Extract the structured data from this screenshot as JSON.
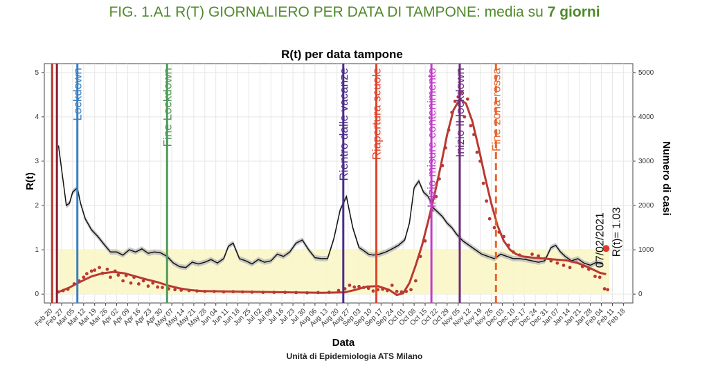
{
  "figure": {
    "title_main": "FIG. 1.A1 R(T) GIORNALIERO PER DATA DI TAMPONE: media su ",
    "title_bold": "7 giorni",
    "credit": "Unità di Epidemiologia ATS Milano"
  },
  "colors": {
    "rt_line": "#111111",
    "rt_band": "#bdbdbd",
    "cases": "#b83a32",
    "threshold_band": "#fbf6c6",
    "grid": "#e6e6e6"
  },
  "chart_data": {
    "type": "line",
    "title": "R(t) per data tampone",
    "xlabel": "Data",
    "ylabel": "R(t)",
    "y2label": "Numero di casi",
    "x_ticks": [
      "Feb 20",
      "Feb 27",
      "Mar 05",
      "Mar 12",
      "Mar 19",
      "Mar 26",
      "Apr 02",
      "Apr 09",
      "Apr 16",
      "Apr 23",
      "Apr 30",
      "May 07",
      "May 14",
      "May 21",
      "May 28",
      "Jun 04",
      "Jun 11",
      "Jun 18",
      "Jun 25",
      "Jul 02",
      "Jul 09",
      "Jul 16",
      "Jul 23",
      "Jul 30",
      "Aug 06",
      "Aug 13",
      "Aug 20",
      "Aug 27",
      "Sep 03",
      "Sep 10",
      "Sep 17",
      "Sep 24",
      "Oct 01",
      "Oct 08",
      "Oct 15",
      "Oct 22",
      "Oct 29",
      "Nov 05",
      "Nov 12",
      "Nov 19",
      "Nov 26",
      "Dec 03",
      "Dec 10",
      "Dec 17",
      "Dec 24",
      "Dec 31",
      "Jan 07",
      "Jan 14",
      "Jan 21",
      "Jan 28",
      "Feb 04",
      "Feb 11",
      "Feb 18"
    ],
    "xlim": [
      "2020-02-16",
      "2021-02-24"
    ],
    "ylim": [
      -0.2,
      5.2
    ],
    "y_ticks": [
      0,
      1,
      2,
      3,
      4,
      5
    ],
    "y2lim": [
      -200,
      5200
    ],
    "y2_ticks": [
      0,
      1000,
      2000,
      3000,
      4000,
      5000
    ],
    "threshold_band": [
      0,
      1
    ],
    "grid": true,
    "events": [
      {
        "date": "2020-02-21",
        "label": "",
        "color": "#c0392b",
        "dashed": false
      },
      {
        "date": "2020-02-24",
        "label": "",
        "color": "#8e1b2c",
        "dashed": false
      },
      {
        "date": "2020-03-08",
        "label": "Lockdown",
        "color": "#3a7fc0",
        "dashed": false
      },
      {
        "date": "2020-05-04",
        "label": "Fine Lockdown",
        "color": "#4f9a5a",
        "dashed": false
      },
      {
        "date": "2020-08-24",
        "label": "Rientro dalle vacanze",
        "color": "#4b2b8a",
        "dashed": false
      },
      {
        "date": "2020-09-14",
        "label": "Riapertura scuole",
        "color": "#e0432a",
        "dashed": false
      },
      {
        "date": "2020-10-19",
        "label": "Inizio misure contenimento",
        "color": "#c13cc9",
        "dashed": false
      },
      {
        "date": "2020-11-06",
        "label": "Inizio II lockdown",
        "color": "#6b2a7a",
        "dashed": false
      },
      {
        "date": "2020-11-29",
        "label": "Fine zona rossa",
        "color": "#e8642c",
        "dashed": true
      }
    ],
    "annotation": {
      "date": "2021-02-07",
      "value": 1.03,
      "date_label": "07/02/2021",
      "value_label": "R(t)= 1.03",
      "color": "#e03a2f"
    },
    "series": [
      {
        "kind": "rt",
        "x": [
          "2020-02-25",
          "2020-03-01",
          "2020-03-03",
          "2020-03-05",
          "2020-03-08",
          "2020-03-10",
          "2020-03-13",
          "2020-03-17",
          "2020-03-21",
          "2020-03-25",
          "2020-03-29",
          "2020-04-02",
          "2020-04-06",
          "2020-04-10",
          "2020-04-14",
          "2020-04-18",
          "2020-04-22",
          "2020-04-26",
          "2020-04-30",
          "2020-05-04",
          "2020-05-08",
          "2020-05-12",
          "2020-05-16",
          "2020-05-20",
          "2020-05-24",
          "2020-05-28",
          "2020-06-01",
          "2020-06-05",
          "2020-06-09",
          "2020-06-12",
          "2020-06-15",
          "2020-06-19",
          "2020-06-23",
          "2020-06-27",
          "2020-07-01",
          "2020-07-05",
          "2020-07-09",
          "2020-07-13",
          "2020-07-17",
          "2020-07-21",
          "2020-07-25",
          "2020-07-29",
          "2020-08-02",
          "2020-08-06",
          "2020-08-10",
          "2020-08-14",
          "2020-08-18",
          "2020-08-22",
          "2020-08-26",
          "2020-08-30",
          "2020-09-03",
          "2020-09-06",
          "2020-09-09",
          "2020-09-12",
          "2020-09-16",
          "2020-09-20",
          "2020-09-24",
          "2020-09-28",
          "2020-10-02",
          "2020-10-05",
          "2020-10-08",
          "2020-10-11",
          "2020-10-14",
          "2020-10-17",
          "2020-10-20",
          "2020-10-23",
          "2020-10-26",
          "2020-10-29",
          "2020-11-01",
          "2020-11-04",
          "2020-11-08",
          "2020-11-12",
          "2020-11-16",
          "2020-11-20",
          "2020-11-24",
          "2020-11-28",
          "2020-12-02",
          "2020-12-06",
          "2020-12-10",
          "2020-12-14",
          "2020-12-18",
          "2020-12-22",
          "2020-12-26",
          "2020-12-30",
          "2021-01-03",
          "2021-01-06",
          "2021-01-09",
          "2021-01-12",
          "2021-01-16",
          "2021-01-20",
          "2021-01-24",
          "2021-01-28",
          "2021-02-01",
          "2021-02-05"
        ],
        "y": [
          3.35,
          2.0,
          2.05,
          2.3,
          2.4,
          2.05,
          1.7,
          1.45,
          1.3,
          1.12,
          0.95,
          0.95,
          0.88,
          1.0,
          0.95,
          1.02,
          0.92,
          0.95,
          0.93,
          0.85,
          0.7,
          0.62,
          0.6,
          0.72,
          0.68,
          0.72,
          0.78,
          0.7,
          0.8,
          1.08,
          1.15,
          0.8,
          0.75,
          0.68,
          0.78,
          0.72,
          0.75,
          0.9,
          0.85,
          0.95,
          1.15,
          1.22,
          1.0,
          0.82,
          0.8,
          0.8,
          1.25,
          1.9,
          2.2,
          1.5,
          1.05,
          0.98,
          0.9,
          0.88,
          0.9,
          0.95,
          1.02,
          1.1,
          1.22,
          1.6,
          2.4,
          2.55,
          2.3,
          2.2,
          1.95,
          1.85,
          1.75,
          1.6,
          1.5,
          1.35,
          1.2,
          1.1,
          1.0,
          0.9,
          0.85,
          0.8,
          0.9,
          0.85,
          0.8,
          0.8,
          0.78,
          0.75,
          0.72,
          0.75,
          1.05,
          1.1,
          0.95,
          0.85,
          0.75,
          0.8,
          0.7,
          0.65,
          0.72,
          0.68
        ]
      },
      {
        "kind": "cases_smooth",
        "x": [
          "2020-02-26",
          "2020-03-03",
          "2020-03-10",
          "2020-03-17",
          "2020-03-24",
          "2020-03-31",
          "2020-04-07",
          "2020-04-14",
          "2020-04-21",
          "2020-04-28",
          "2020-05-05",
          "2020-05-12",
          "2020-05-19",
          "2020-05-26",
          "2020-06-09",
          "2020-06-30",
          "2020-07-21",
          "2020-08-11",
          "2020-08-25",
          "2020-09-01",
          "2020-09-08",
          "2020-09-15",
          "2020-09-22",
          "2020-09-27",
          "2020-10-01",
          "2020-10-05",
          "2020-10-09",
          "2020-10-13",
          "2020-10-17",
          "2020-10-21",
          "2020-10-25",
          "2020-10-29",
          "2020-11-02",
          "2020-11-06",
          "2020-11-10",
          "2020-11-14",
          "2020-11-18",
          "2020-11-22",
          "2020-11-26",
          "2020-11-30",
          "2020-12-04",
          "2020-12-08",
          "2020-12-12",
          "2020-12-16",
          "2020-12-23",
          "2020-12-30",
          "2021-01-06",
          "2021-01-13",
          "2021-01-20",
          "2021-01-27",
          "2021-02-03",
          "2021-02-07"
        ],
        "y": [
          60,
          150,
          280,
          400,
          470,
          500,
          470,
          400,
          330,
          270,
          190,
          130,
          90,
          70,
          60,
          50,
          40,
          30,
          40,
          100,
          170,
          180,
          100,
          -20,
          20,
          250,
          650,
          1100,
          1650,
          2250,
          2900,
          3600,
          4150,
          4400,
          4300,
          3900,
          3300,
          2650,
          2050,
          1550,
          1200,
          1000,
          900,
          850,
          820,
          800,
          780,
          760,
          700,
          600,
          480,
          450
        ]
      }
    ],
    "cases_points": {
      "x": [
        "2020-02-25",
        "2020-02-28",
        "2020-03-02",
        "2020-03-06",
        "2020-03-09",
        "2020-03-12",
        "2020-03-14",
        "2020-03-17",
        "2020-03-19",
        "2020-03-22",
        "2020-03-24",
        "2020-03-27",
        "2020-03-29",
        "2020-04-01",
        "2020-04-03",
        "2020-04-06",
        "2020-04-08",
        "2020-04-11",
        "2020-04-13",
        "2020-04-16",
        "2020-04-19",
        "2020-04-22",
        "2020-04-25",
        "2020-04-28",
        "2020-05-01",
        "2020-05-05",
        "2020-05-09",
        "2020-05-13",
        "2020-05-18",
        "2020-05-23",
        "2020-05-28",
        "2020-06-03",
        "2020-06-09",
        "2020-06-15",
        "2020-06-21",
        "2020-06-27",
        "2020-07-04",
        "2020-07-11",
        "2020-07-18",
        "2020-07-25",
        "2020-08-01",
        "2020-08-08",
        "2020-08-15",
        "2020-08-21",
        "2020-08-25",
        "2020-08-28",
        "2020-08-31",
        "2020-09-03",
        "2020-09-06",
        "2020-09-09",
        "2020-09-12",
        "2020-09-15",
        "2020-09-18",
        "2020-09-21",
        "2020-09-24",
        "2020-09-27",
        "2020-09-30",
        "2020-10-03",
        "2020-10-06",
        "2020-10-09",
        "2020-10-12",
        "2020-10-15",
        "2020-10-18",
        "2020-10-20",
        "2020-10-22",
        "2020-10-24",
        "2020-10-26",
        "2020-10-28",
        "2020-10-30",
        "2020-11-01",
        "2020-11-03",
        "2020-11-05",
        "2020-11-07",
        "2020-11-09",
        "2020-11-11",
        "2020-11-13",
        "2020-11-15",
        "2020-11-17",
        "2020-11-19",
        "2020-11-21",
        "2020-11-23",
        "2020-11-25",
        "2020-11-28",
        "2020-12-01",
        "2020-12-04",
        "2020-12-07",
        "2020-12-10",
        "2020-12-14",
        "2020-12-18",
        "2020-12-22",
        "2020-12-26",
        "2020-12-30",
        "2021-01-03",
        "2021-01-07",
        "2021-01-11",
        "2021-01-15",
        "2021-01-19",
        "2021-01-23",
        "2021-01-27",
        "2021-01-31",
        "2021-02-03",
        "2021-02-06",
        "2021-02-08"
      ],
      "y": [
        50,
        80,
        110,
        230,
        300,
        380,
        460,
        520,
        540,
        600,
        470,
        560,
        380,
        520,
        430,
        300,
        420,
        250,
        380,
        230,
        300,
        180,
        250,
        160,
        150,
        120,
        100,
        90,
        80,
        70,
        60,
        60,
        50,
        55,
        50,
        45,
        40,
        40,
        40,
        35,
        30,
        35,
        40,
        80,
        120,
        200,
        160,
        170,
        150,
        130,
        70,
        100,
        110,
        80,
        200,
        60,
        50,
        60,
        100,
        300,
        850,
        1200,
        1750,
        1900,
        2200,
        2600,
        2900,
        3300,
        3700,
        4100,
        4350,
        4450,
        4550,
        4000,
        4400,
        3800,
        3600,
        3200,
        3000,
        2500,
        2100,
        1700,
        1500,
        1400,
        1300,
        1100,
        950,
        880,
        820,
        900,
        860,
        800,
        750,
        700,
        650,
        600,
        750,
        620,
        560,
        400,
        380,
        120,
        100
      ]
    }
  }
}
